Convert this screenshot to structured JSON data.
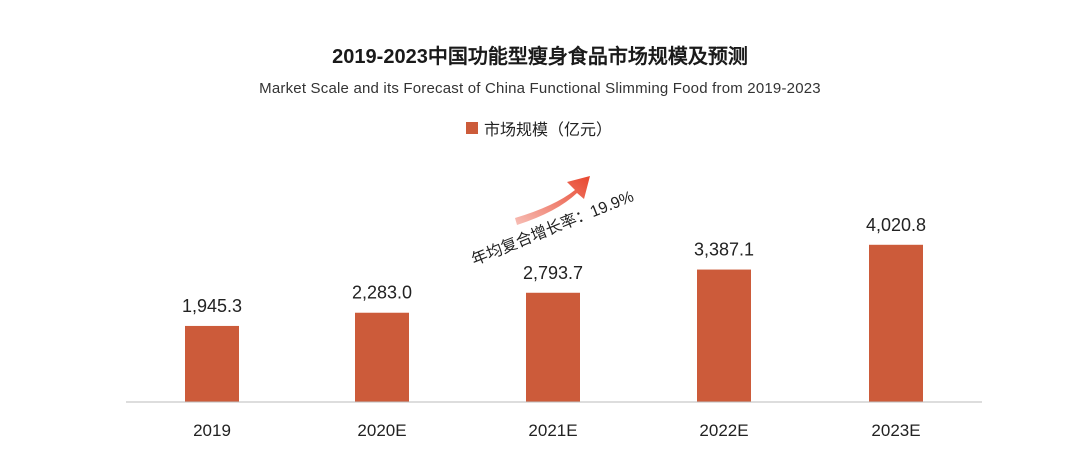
{
  "chart_data": {
    "type": "bar",
    "title": "2019-2023中国功能型瘦身食品市场规模及预测",
    "subtitle": "Market Scale and its Forecast of China Functional Slimming Food from 2019-2023",
    "categories": [
      "2019",
      "2020E",
      "2021E",
      "2022E",
      "2023E"
    ],
    "series": [
      {
        "name": "市场规模（亿元）",
        "values": [
          1945.3,
          2283.0,
          2793.7,
          3387.1,
          4020.8
        ]
      }
    ],
    "value_labels": [
      "1,945.3",
      "2,283.0",
      "2,793.7",
      "3,387.1",
      "4,020.8"
    ],
    "annotation": "年均复合增长率：19.9%",
    "ylim": [
      0,
      5000
    ],
    "grid": false,
    "legend_position": "top-center",
    "colors": {
      "bar": "#CC5B3A",
      "arrow": "#E8462E",
      "axis": "#bbbbbb"
    }
  }
}
